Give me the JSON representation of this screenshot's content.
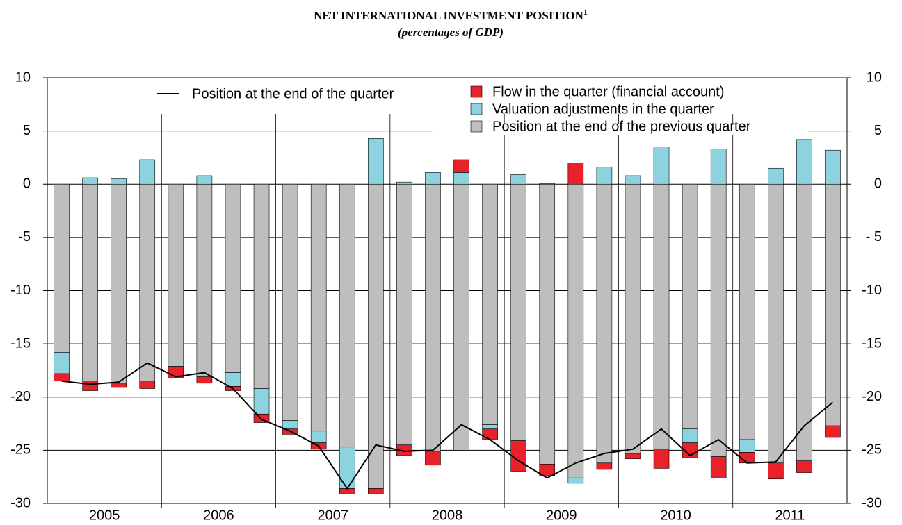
{
  "chart_data": {
    "type": "bar",
    "title": "NET INTERNATIONAL INVESTMENT POSITION",
    "title_note": "1",
    "subtitle": "(percentages of GDP)",
    "categories": [
      "2005",
      "2006",
      "2007",
      "2008",
      "2009",
      "2010",
      "2011"
    ],
    "series": [
      {
        "name": "Position at the end of the previous quarter",
        "color": "#bebebe",
        "values": [
          [
            -15.8,
            -18.5,
            -18.7,
            -18.5
          ],
          [
            -16.8,
            -18.1,
            -17.7,
            -19.2
          ],
          [
            -22.2,
            -23.2,
            -24.7,
            -28.6
          ],
          [
            -24.5,
            -25.1,
            -25.0,
            -22.6
          ],
          [
            -24.1,
            -26.3,
            -27.6,
            -26.2
          ],
          [
            -25.3,
            -24.9,
            -23.0,
            -25.6
          ],
          [
            -24.0,
            -26.2,
            -26.0,
            -22.7
          ]
        ]
      },
      {
        "name": "Valuation adjustments in the quarter",
        "color": "#8dd3df",
        "values": [
          [
            -2.0,
            0.6,
            0.5,
            2.3
          ],
          [
            -0.3,
            0.8,
            -1.3,
            -2.4
          ],
          [
            -0.8,
            -1.1,
            -3.9,
            4.3
          ],
          [
            0.2,
            1.1,
            1.1,
            -0.4
          ],
          [
            0.9,
            0.05,
            -0.5,
            1.6
          ],
          [
            0.8,
            3.5,
            -1.3,
            3.3
          ],
          [
            -1.2,
            1.5,
            4.2,
            3.2
          ]
        ]
      },
      {
        "name": "Flow in the quarter (financial account)",
        "color": "#e8212a",
        "values": [
          [
            -0.7,
            -0.9,
            -0.4,
            -0.7
          ],
          [
            -1.1,
            -0.6,
            -0.4,
            -0.8
          ],
          [
            -0.5,
            -0.6,
            -0.5,
            -0.5
          ],
          [
            -1.0,
            -1.3,
            1.2,
            -1.0
          ],
          [
            -2.9,
            -1.1,
            2.0,
            -0.6
          ],
          [
            -0.5,
            -1.8,
            -1.4,
            -2.0
          ],
          [
            -1.0,
            -1.5,
            -1.1,
            -1.1
          ]
        ]
      },
      {
        "name": "Position at the end of the quarter",
        "type": "line",
        "color": "#000000",
        "values": [
          [
            -18.5,
            -18.8,
            -18.6,
            -16.8
          ],
          [
            -18.1,
            -17.7,
            -19.2,
            -22.1
          ],
          [
            -23.2,
            -24.6,
            -28.6,
            -24.5
          ],
          [
            -25.1,
            -25.0,
            -22.6,
            -24.0
          ],
          [
            -26.0,
            -27.6,
            -26.2,
            -25.3
          ],
          [
            -24.9,
            -23.0,
            -25.5,
            -24.0
          ],
          [
            -26.2,
            -26.1,
            -22.7,
            -20.5
          ]
        ]
      }
    ],
    "ylim": [
      -30,
      10
    ],
    "yticks": [
      -30,
      -25,
      -20,
      -15,
      -10,
      -5,
      0,
      5,
      10
    ],
    "y2lim": [
      -30,
      10
    ],
    "y2ticks": [
      -30,
      -25,
      -20,
      -15,
      -10,
      {
        "value": -5,
        "label": "- 5"
      },
      0,
      5,
      10
    ],
    "grid": true
  }
}
